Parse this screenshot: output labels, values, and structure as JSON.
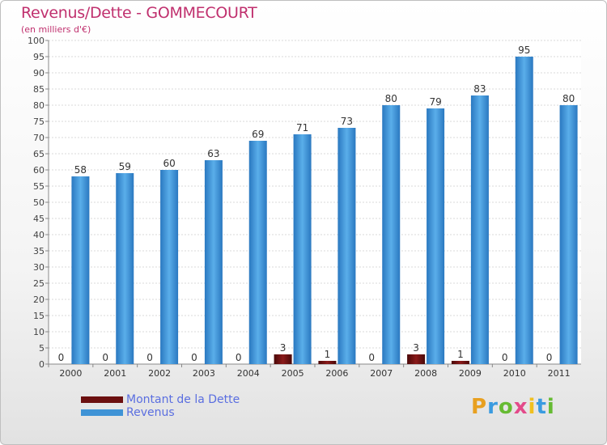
{
  "chart_data": {
    "type": "bar",
    "title": "Revenus/Dette - GOMMECOURT",
    "subtitle": "(en milliers d'€)",
    "categories": [
      "2000",
      "2001",
      "2002",
      "2003",
      "2004",
      "2005",
      "2006",
      "2007",
      "2008",
      "2009",
      "2010",
      "2011"
    ],
    "series": [
      {
        "name": "Montant de la Dette",
        "color": "#6b0f0f",
        "values": [
          0,
          0,
          0,
          0,
          0,
          3,
          1,
          0,
          3,
          1,
          0,
          0
        ]
      },
      {
        "name": "Revenus",
        "color": "#3f93d6",
        "values": [
          58,
          59,
          60,
          63,
          69,
          71,
          73,
          80,
          79,
          83,
          95,
          80
        ]
      }
    ],
    "ylim": [
      0,
      100
    ],
    "yticks": [
      0,
      5,
      10,
      15,
      20,
      25,
      30,
      35,
      40,
      45,
      50,
      55,
      60,
      65,
      70,
      75,
      80,
      85,
      90,
      95,
      100
    ],
    "grid": true,
    "legend": "bottom-left"
  },
  "brand": {
    "letters": [
      "P",
      "r",
      "o",
      "x",
      "i",
      "t",
      "i"
    ],
    "colors": [
      "#e8a020",
      "#3a9be0",
      "#66bb33",
      "#e34a8a",
      "#f0c020",
      "#3a9be0",
      "#66bb33"
    ]
  }
}
